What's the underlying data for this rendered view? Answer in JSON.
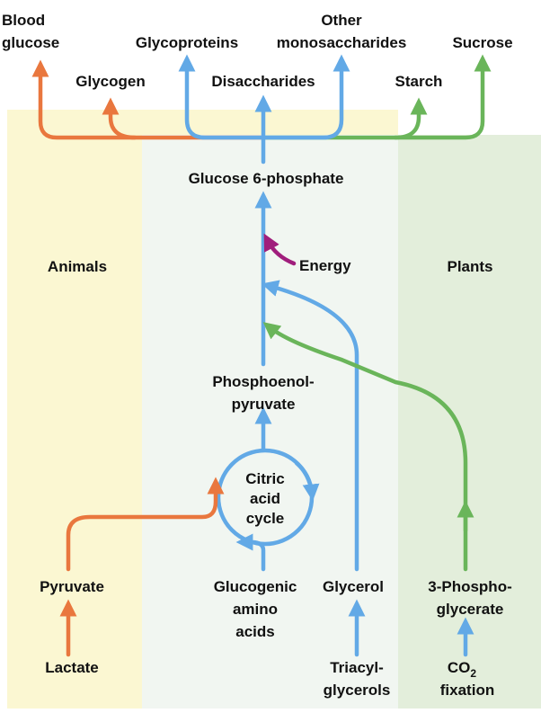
{
  "colors": {
    "animal_bg": "#fbf7d2",
    "middle_bg": "#f1f6f1",
    "plant_bg": "#e3eedb",
    "animal_arrow": "#e9773e",
    "core_arrow": "#62a9e6",
    "plant_arrow": "#6ab55a",
    "energy_arrow": "#a01e7c",
    "text": "#111111"
  },
  "regions": {
    "animals": "Animals",
    "plants": "Plants"
  },
  "products": {
    "blood_glucose": [
      "Blood",
      "glucose"
    ],
    "glycogen": "Glycogen",
    "glycoproteins": "Glycoproteins",
    "disaccharides": "Disaccharides",
    "other_monosaccharides": [
      "Other",
      "monosaccharides"
    ],
    "starch": "Starch",
    "sucrose": "Sucrose"
  },
  "pathway": {
    "glucose_6_phosphate": "Glucose 6-phosphate",
    "energy": "Energy",
    "phosphoenolpyruvate": [
      "Phosphoenol-",
      "pyruvate"
    ],
    "citric_acid_cycle": [
      "Citric",
      "acid",
      "cycle"
    ]
  },
  "precursors": {
    "pyruvate": "Pyruvate",
    "lactate": "Lactate",
    "glucogenic_amino_acids": [
      "Glucogenic",
      "amino",
      "acids"
    ],
    "glycerol": "Glycerol",
    "triacylglycerols": [
      "Triacyl-",
      "glycerols"
    ],
    "phosphoglycerate": [
      "3-Phospho-",
      "glycerate"
    ],
    "co2_fixation": {
      "main": "CO",
      "subscript": "2",
      "second_line": "fixation"
    }
  },
  "icons": [
    "arrow-head",
    "cycle-arrow"
  ]
}
